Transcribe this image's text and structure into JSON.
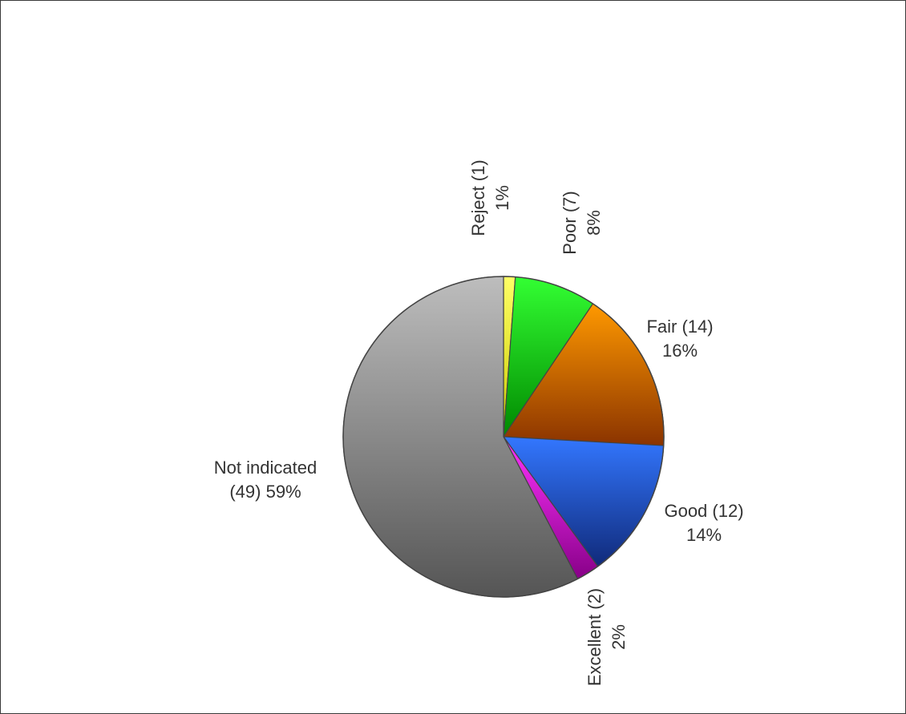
{
  "chart_data": {
    "type": "pie",
    "title": "",
    "slices": [
      {
        "name": "Reject",
        "count": 1,
        "percent": 1,
        "color_top": "#ffff66",
        "color_bottom": "#c9c900",
        "label_line1": "Reject (1)",
        "label_line2": "1%",
        "label_rotated": true
      },
      {
        "name": "Poor",
        "count": 7,
        "percent": 8,
        "color_top": "#33ff33",
        "color_bottom": "#008800",
        "label_line1": "Poor (7)",
        "label_line2": "8%",
        "label_rotated": true
      },
      {
        "name": "Fair",
        "count": 14,
        "percent": 16,
        "color_top": "#ff9900",
        "color_bottom": "#8a3300",
        "label_line1": "Fair (14)",
        "label_line2": "16%",
        "label_rotated": false
      },
      {
        "name": "Good",
        "count": 12,
        "percent": 14,
        "color_top": "#3377ff",
        "color_bottom": "#102a7a",
        "label_line1": "Good (12)",
        "label_line2": "14%",
        "label_rotated": false
      },
      {
        "name": "Excellent",
        "count": 2,
        "percent": 2,
        "color_top": "#ff33ff",
        "color_bottom": "#880088",
        "label_line1": "Excellent (2)",
        "label_line2": "2%",
        "label_rotated": true
      },
      {
        "name": "Not indicated",
        "count": 49,
        "percent": 59,
        "color_top": "#bdbdbd",
        "color_bottom": "#555555",
        "label_line1": "Not indicated",
        "label_line2": "(49) 59%",
        "label_rotated": false
      }
    ],
    "start_angle_deg": 0,
    "direction": "clockwise",
    "outline_color": "#444444"
  }
}
